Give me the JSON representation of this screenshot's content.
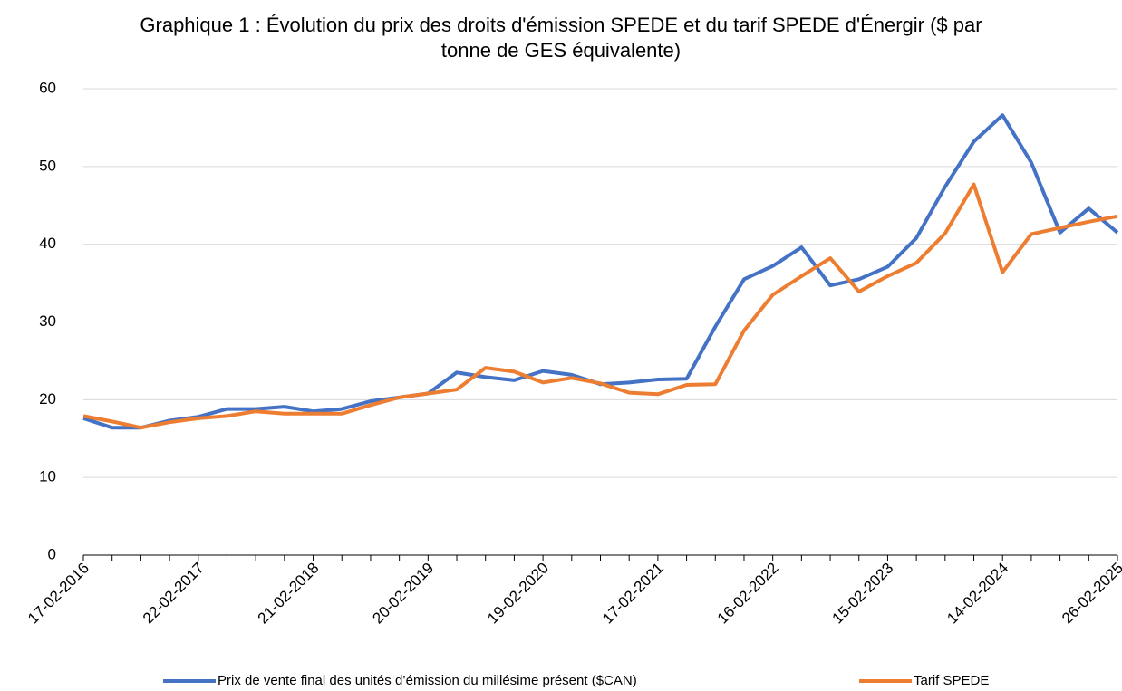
{
  "chart_data": {
    "type": "line",
    "title": "Graphique 1 : Évolution du prix des droits d'émission SPEDE et du tarif SPEDE d'Énergir ($ par tonne de GES équivalente)",
    "categories": [
      "17-02-2016",
      null,
      null,
      null,
      "22-02-2017",
      null,
      null,
      null,
      "21-02-2018",
      null,
      null,
      null,
      "20-02-2019",
      null,
      null,
      null,
      "19-02-2020",
      null,
      null,
      null,
      "17-02-2021",
      null,
      null,
      null,
      "16-02-2022",
      null,
      null,
      null,
      "15-02-2023",
      null,
      null,
      null,
      "14-02-2024",
      null,
      null,
      null,
      "26-02-2025"
    ],
    "series": [
      {
        "name": "Prix de vente final des unités d’émission du millésime présent ($CAN)",
        "color": "#4472c4",
        "values": [
          17.6,
          16.4,
          16.4,
          17.3,
          17.8,
          18.8,
          18.8,
          19.1,
          18.5,
          18.8,
          19.8,
          20.3,
          20.8,
          23.5,
          22.9,
          22.5,
          23.7,
          23.2,
          22.0,
          22.2,
          22.6,
          22.7,
          29.4,
          35.5,
          37.2,
          39.6,
          34.7,
          35.5,
          37.1,
          40.8,
          47.4,
          53.2,
          56.6,
          50.5,
          41.5,
          44.6,
          41.5
        ]
      },
      {
        "name": "Tarif SPEDE",
        "color": "#ed7d31",
        "values": [
          17.9,
          17.2,
          16.4,
          17.1,
          17.6,
          17.9,
          18.5,
          18.2,
          18.2,
          18.2,
          19.3,
          20.3,
          20.8,
          21.3,
          24.1,
          23.6,
          22.2,
          22.8,
          22.1,
          20.9,
          20.7,
          21.9,
          22.0,
          28.9,
          33.5,
          35.9,
          38.2,
          33.9,
          35.9,
          37.6,
          41.4,
          47.7,
          36.4,
          41.3,
          42.1,
          42.9,
          43.6
        ]
      }
    ],
    "ylim": [
      0,
      60
    ],
    "yticks": [
      0,
      10,
      20,
      30,
      40,
      50,
      60
    ],
    "grid": true,
    "legend": "bottom"
  }
}
